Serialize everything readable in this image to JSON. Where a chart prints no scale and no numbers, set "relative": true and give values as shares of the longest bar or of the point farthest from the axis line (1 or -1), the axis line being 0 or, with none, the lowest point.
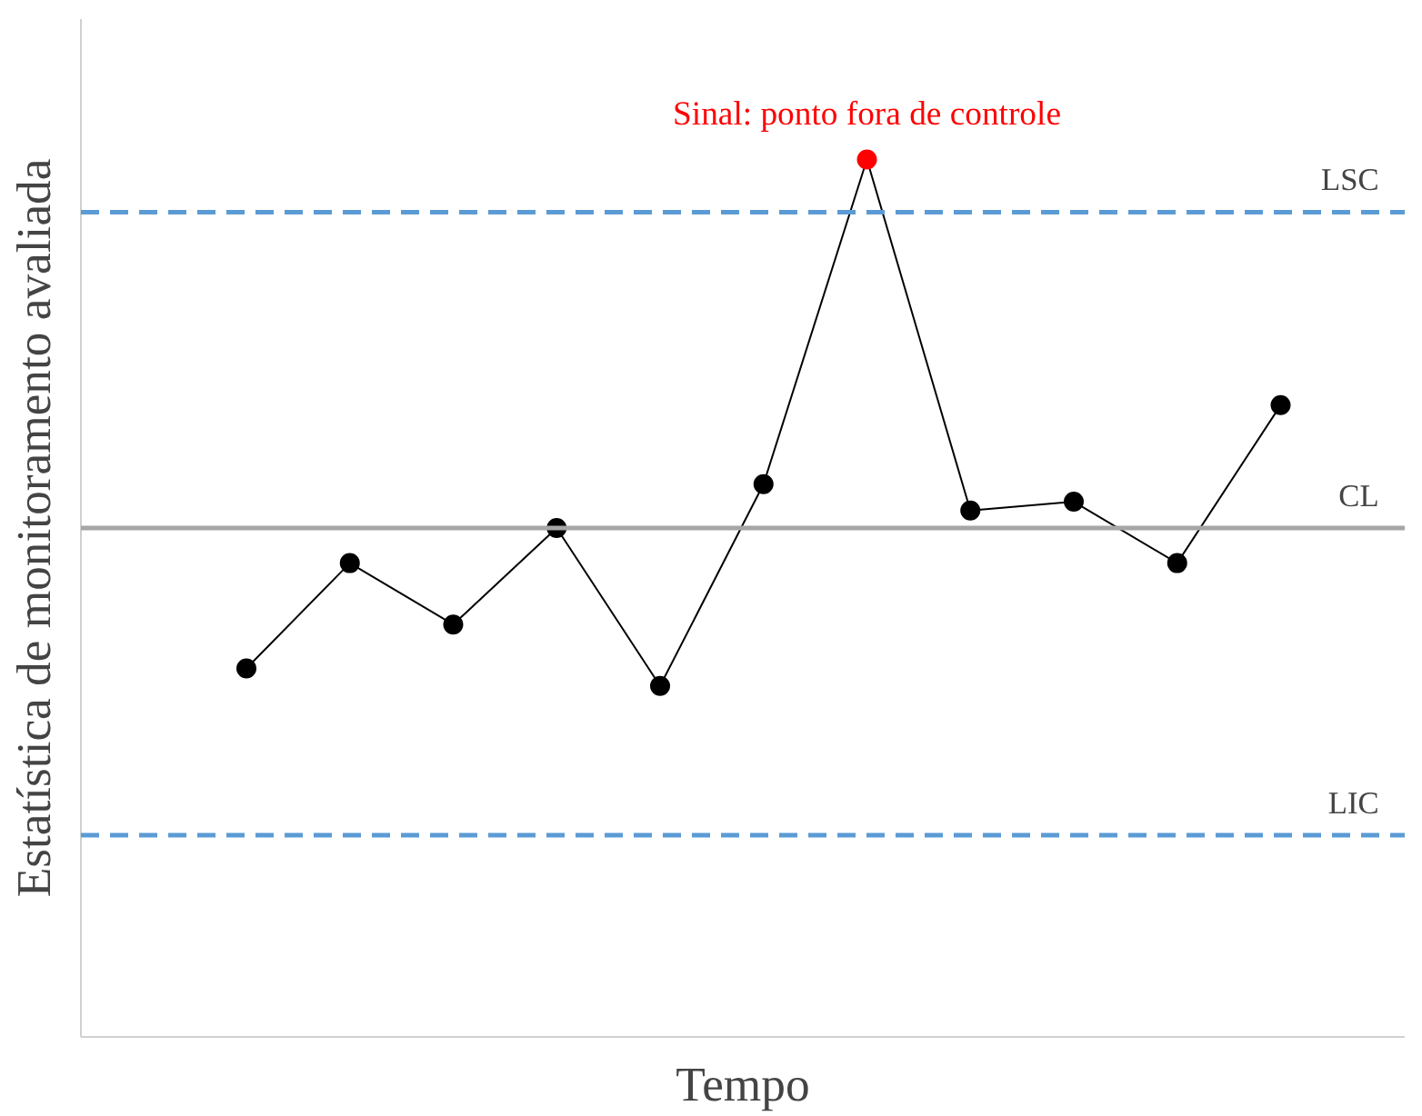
{
  "chart_data": {
    "type": "line",
    "relative": true,
    "xlabel": "Tempo",
    "ylabel": "Estatística de monitoramento avaliada",
    "categories": [
      null,
      null,
      null,
      null,
      null,
      null,
      null,
      null,
      null,
      null,
      null
    ],
    "series": [
      {
        "color": "#000000",
        "colors": [
          "#000000",
          "#000000",
          "#000000",
          "#000000",
          "#000000",
          "#000000",
          "#ff0000",
          "#000000",
          "#000000",
          "#000000",
          "#000000"
        ],
        "values": [
          0.42,
          0.54,
          0.47,
          0.58,
          0.4,
          0.63,
          1,
          0.6,
          0.61,
          0.54,
          0.72
        ]
      }
    ],
    "ref_lines": [
      {
        "axis": "y",
        "value": 0.94,
        "label": "LSC",
        "color": "#5b9bd5",
        "line_style": "dashed"
      },
      {
        "axis": "y",
        "value": 0.58,
        "label": "CL",
        "color": "#a6a6a6",
        "line_style": "solid"
      },
      {
        "axis": "y",
        "value": 0.23,
        "label": "LIC",
        "color": "#5b9bd5",
        "line_style": "dashed"
      }
    ],
    "annotations": [
      {
        "text": "Sinal: ponto fora de controle",
        "y": 1
      }
    ],
    "marker": "circle",
    "line_style": "solid",
    "grid": false
  }
}
